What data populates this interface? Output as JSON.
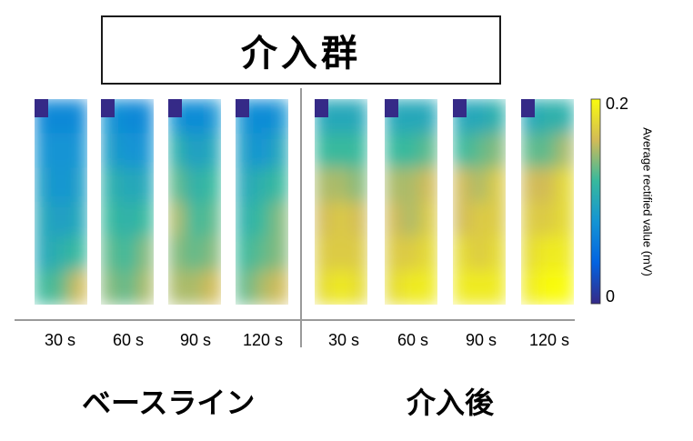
{
  "chart_data": {
    "type": "heatmap",
    "title": "介入群",
    "groups": [
      {
        "label": "ベースライン",
        "times": [
          "30 s",
          "60 s",
          "90 s",
          "120 s"
        ]
      },
      {
        "label": "介入後",
        "times": [
          "30 s",
          "60 s",
          "90 s",
          "120 s"
        ]
      }
    ],
    "colorbar": {
      "label": "Average rectified value (mV)",
      "min": 0,
      "max": 0.2,
      "ticks": [
        "0",
        "0.2"
      ],
      "colormap": "parula"
    },
    "grid": {
      "rows": 6,
      "cols": 3
    },
    "maps": [
      {
        "group": "ベースライン",
        "time": "30 s",
        "values": [
          [
            0.07,
            0.07,
            0.07
          ],
          [
            0.08,
            0.08,
            0.08
          ],
          [
            0.09,
            0.08,
            0.09
          ],
          [
            0.1,
            0.09,
            0.1
          ],
          [
            0.1,
            0.11,
            0.12
          ],
          [
            0.12,
            0.13,
            0.16
          ]
        ]
      },
      {
        "group": "ベースライン",
        "time": "60 s",
        "values": [
          [
            0.08,
            0.07,
            0.07
          ],
          [
            0.09,
            0.08,
            0.08
          ],
          [
            0.11,
            0.1,
            0.1
          ],
          [
            0.12,
            0.11,
            0.12
          ],
          [
            0.13,
            0.12,
            0.14
          ],
          [
            0.14,
            0.13,
            0.15
          ]
        ]
      },
      {
        "group": "ベースライン",
        "time": "90 s",
        "values": [
          [
            0.08,
            0.07,
            0.08
          ],
          [
            0.11,
            0.09,
            0.1
          ],
          [
            0.13,
            0.11,
            0.12
          ],
          [
            0.15,
            0.12,
            0.13
          ],
          [
            0.14,
            0.13,
            0.14
          ],
          [
            0.15,
            0.15,
            0.16
          ]
        ]
      },
      {
        "group": "ベースライン",
        "time": "120 s",
        "values": [
          [
            0.08,
            0.07,
            0.08
          ],
          [
            0.09,
            0.08,
            0.1
          ],
          [
            0.1,
            0.11,
            0.12
          ],
          [
            0.11,
            0.12,
            0.14
          ],
          [
            0.12,
            0.13,
            0.14
          ],
          [
            0.13,
            0.15,
            0.16
          ]
        ]
      },
      {
        "group": "介入後",
        "time": "30 s",
        "values": [
          [
            0.1,
            0.1,
            0.1
          ],
          [
            0.12,
            0.12,
            0.12
          ],
          [
            0.15,
            0.15,
            0.14
          ],
          [
            0.16,
            0.17,
            0.16
          ],
          [
            0.17,
            0.17,
            0.17
          ],
          [
            0.18,
            0.19,
            0.18
          ]
        ]
      },
      {
        "group": "介入後",
        "time": "60 s",
        "values": [
          [
            0.1,
            0.1,
            0.1
          ],
          [
            0.12,
            0.12,
            0.13
          ],
          [
            0.15,
            0.15,
            0.16
          ],
          [
            0.16,
            0.15,
            0.17
          ],
          [
            0.17,
            0.17,
            0.18
          ],
          [
            0.18,
            0.19,
            0.19
          ]
        ]
      },
      {
        "group": "介入後",
        "time": "90 s",
        "values": [
          [
            0.1,
            0.1,
            0.11
          ],
          [
            0.12,
            0.13,
            0.14
          ],
          [
            0.16,
            0.15,
            0.17
          ],
          [
            0.16,
            0.17,
            0.17
          ],
          [
            0.18,
            0.17,
            0.18
          ],
          [
            0.19,
            0.19,
            0.19
          ]
        ]
      },
      {
        "group": "介入後",
        "time": "120 s",
        "values": [
          [
            0.1,
            0.11,
            0.11
          ],
          [
            0.13,
            0.13,
            0.15
          ],
          [
            0.16,
            0.16,
            0.18
          ],
          [
            0.17,
            0.17,
            0.18
          ],
          [
            0.18,
            0.19,
            0.19
          ],
          [
            0.19,
            0.2,
            0.2
          ]
        ]
      }
    ]
  }
}
